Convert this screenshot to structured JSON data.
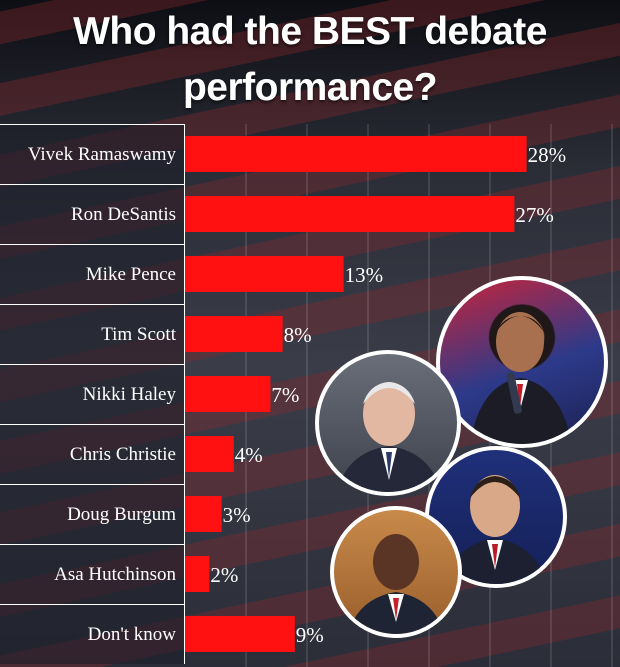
{
  "title_line1": "Who had the BEST debate",
  "title_line2": "performance?",
  "chart_data": {
    "type": "bar",
    "orientation": "horizontal",
    "categories": [
      "Vivek Ramaswamy",
      "Ron DeSantis",
      "Mike Pence",
      "Tim Scott",
      "Nikki Haley",
      "Chris Christie",
      "Doug Burgum",
      "Asa Hutchinson",
      "Don't know"
    ],
    "values": [
      28,
      27,
      13,
      8,
      7,
      4,
      3,
      2,
      9
    ],
    "value_labels": [
      "28%",
      "27%",
      "13%",
      "8%",
      "7%",
      "4%",
      "3%",
      "2%",
      "9%"
    ],
    "title": "Who had the BEST debate performance?",
    "xlabel": "",
    "ylabel": "",
    "xlim": [
      0,
      35
    ],
    "grid": true,
    "bar_color": "#ff1111"
  },
  "colors": {
    "bar": "#ff1111",
    "text": "#ffffff"
  }
}
